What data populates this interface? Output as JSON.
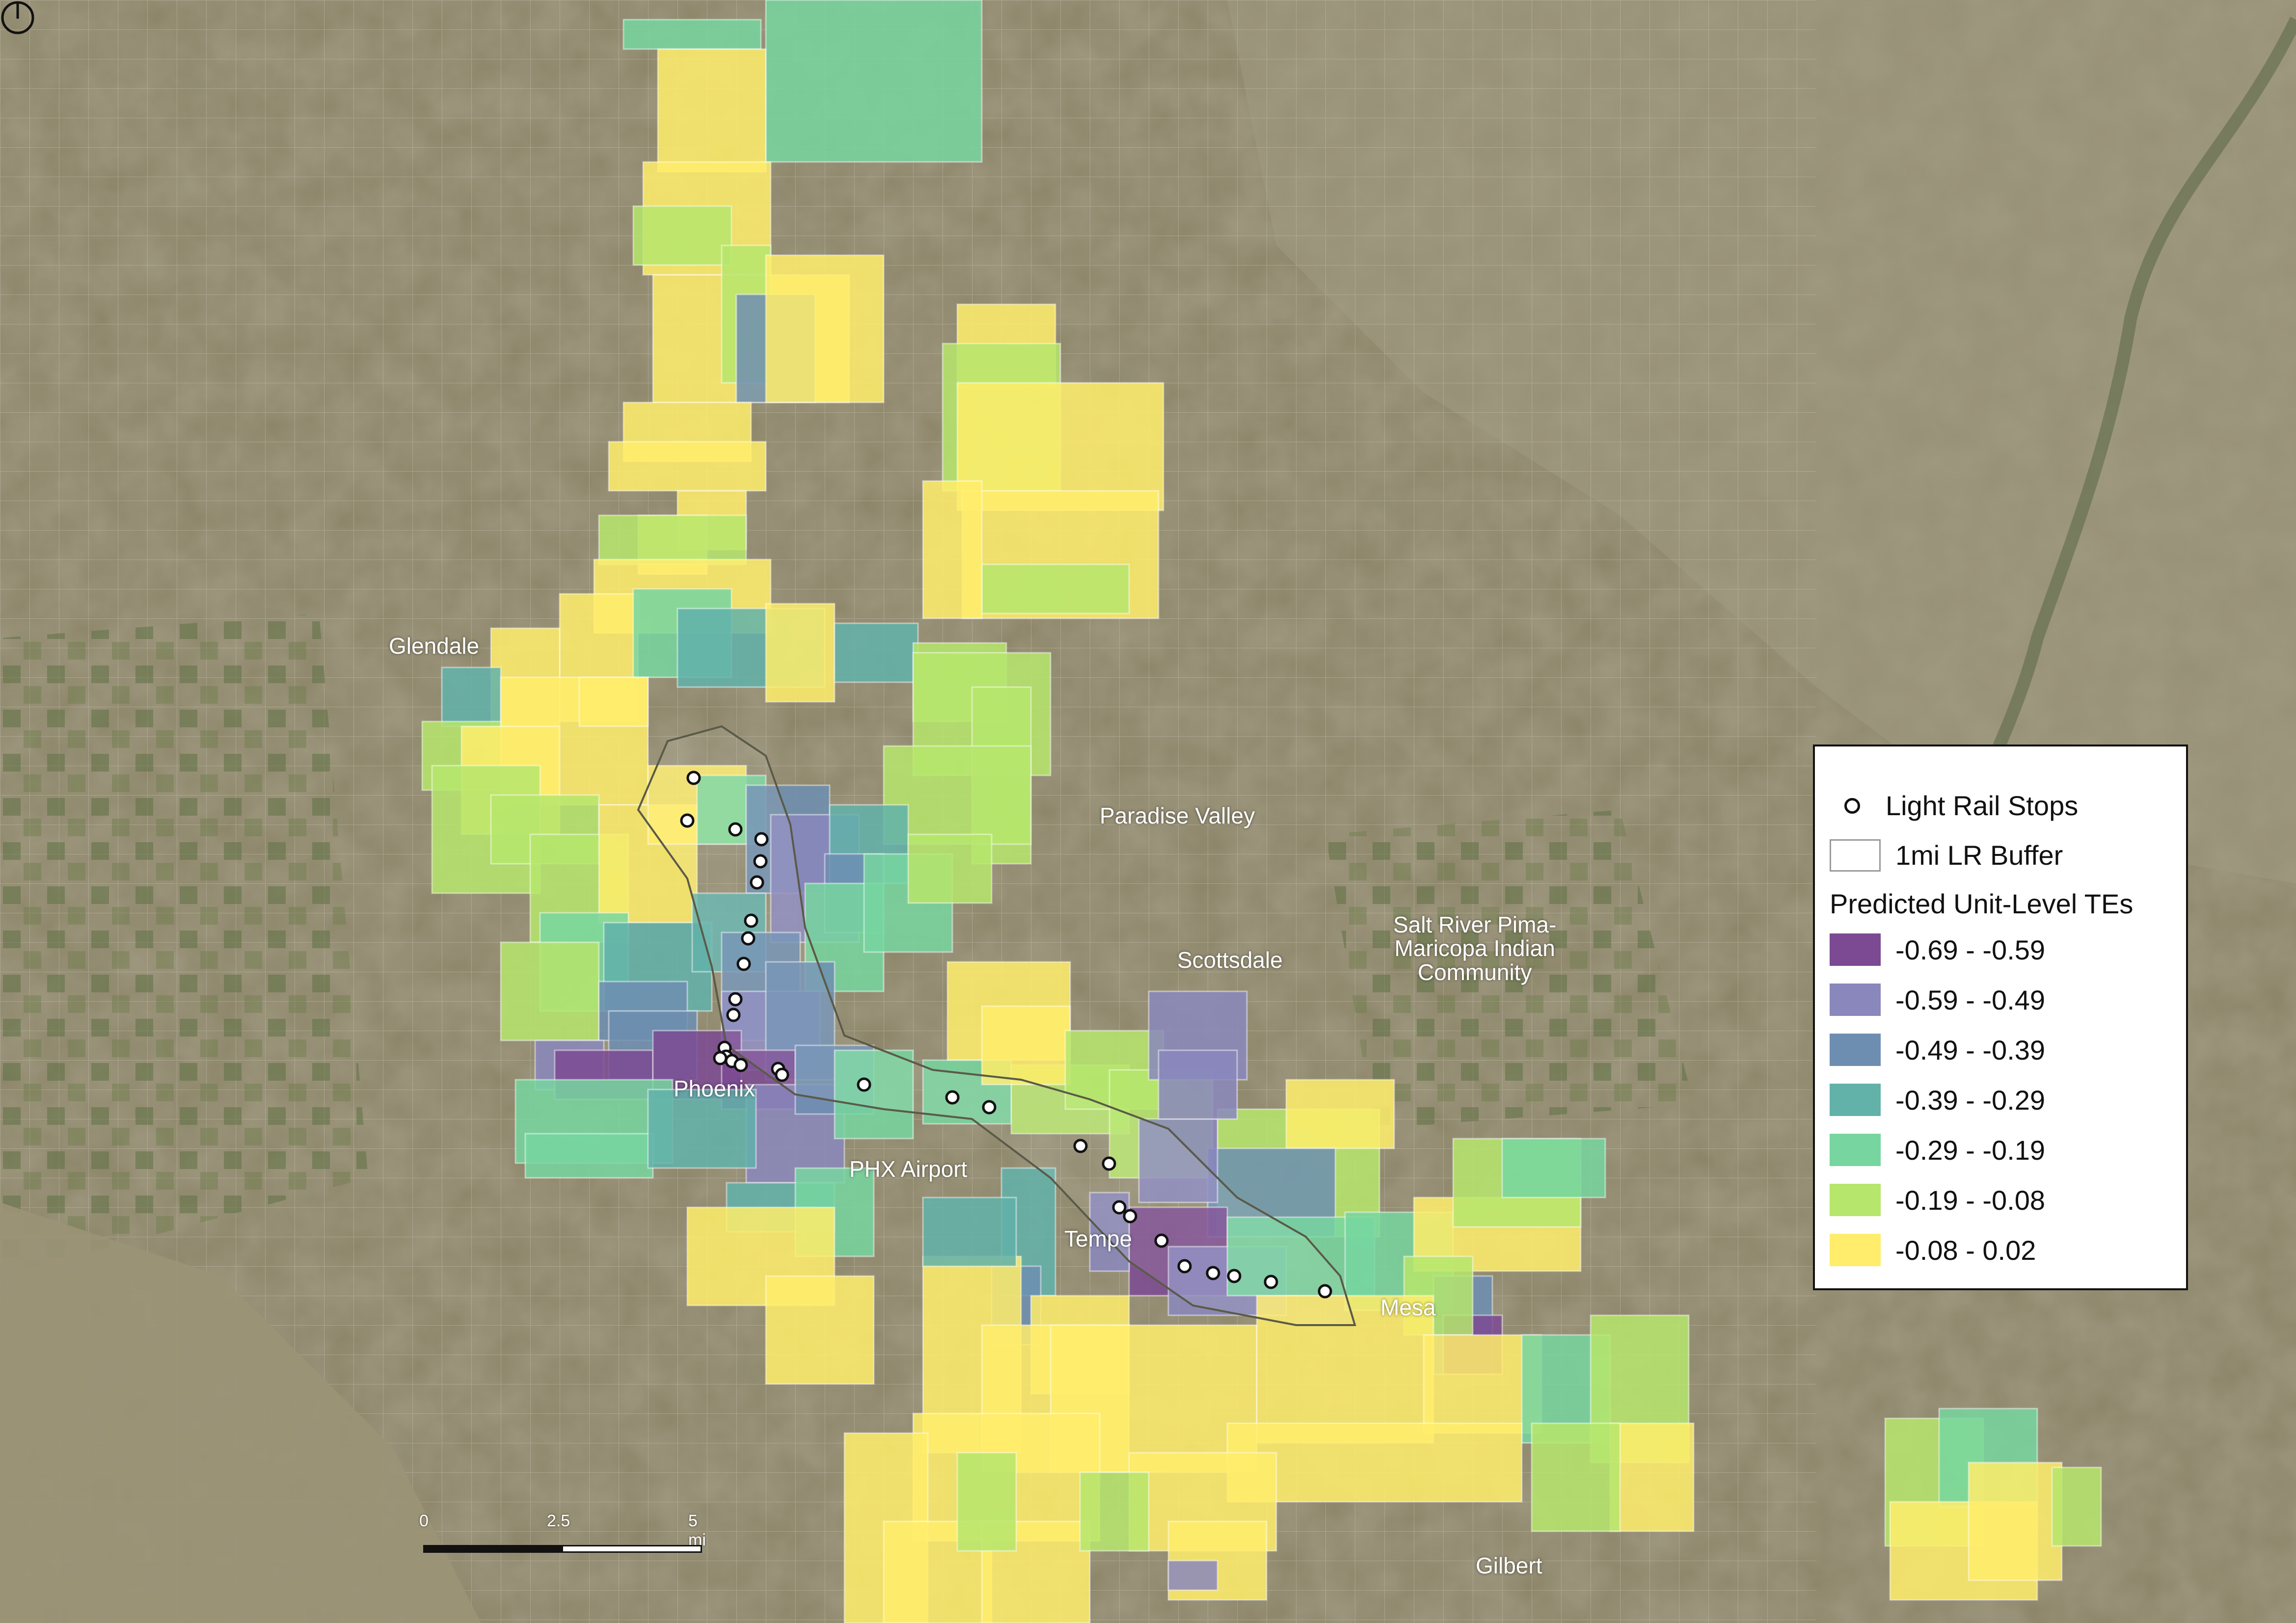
{
  "map": {
    "city_labels": [
      "Glendale",
      "Paradise Valley",
      "Scottsdale",
      "Salt River Pima-\nMaricopa Indian\nCommunity",
      "Phoenix",
      "PHX Airport",
      "Tempe",
      "Mesa",
      "Gilbert"
    ]
  },
  "legend": {
    "stops_label": "Light Rail Stops",
    "buffer_label": "1mi LR Buffer",
    "heading": "Predicted Unit-Level TEs",
    "classes": [
      {
        "label": "-0.69 - -0.59",
        "color": "#7b4a93"
      },
      {
        "label": "-0.59 - -0.49",
        "color": "#8a87bd"
      },
      {
        "label": "-0.49 - -0.39",
        "color": "#6d8eb1"
      },
      {
        "label": "-0.39 - -0.29",
        "color": "#62b2aa"
      },
      {
        "label": "-0.29 - -0.19",
        "color": "#77d6a0"
      },
      {
        "label": "-0.19 - -0.08",
        "color": "#b6e66c"
      },
      {
        "label": "-0.08 - 0.02",
        "color": "#ffed6b"
      }
    ]
  },
  "scale_bar": {
    "ticks": [
      "0",
      "2.5",
      "5 mi"
    ]
  },
  "colors": {
    "stop_fill": "#ffffff",
    "stop_stroke": "#111111",
    "buffer_stroke": "#6a6a5a",
    "imagery_base": "#8a8468"
  }
}
